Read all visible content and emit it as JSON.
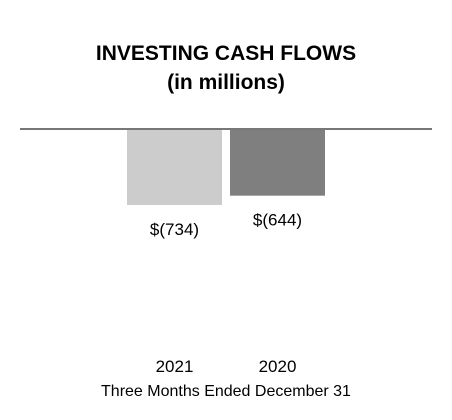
{
  "chart_data": {
    "type": "bar",
    "title": "INVESTING CASH FLOWS",
    "subtitle": "(in millions)",
    "categories": [
      "2021",
      "2020"
    ],
    "values": [
      -734,
      -644
    ],
    "data_labels": [
      "$(734)",
      "$(644)"
    ],
    "bar_colors": [
      "#cccccc",
      "#7f7f7f"
    ],
    "baseline_color": "#777777",
    "xlabel": "Three Months Ended December 31",
    "ylabel": "",
    "ylim": [
      -734,
      0
    ],
    "grid": false,
    "legend": "none"
  }
}
